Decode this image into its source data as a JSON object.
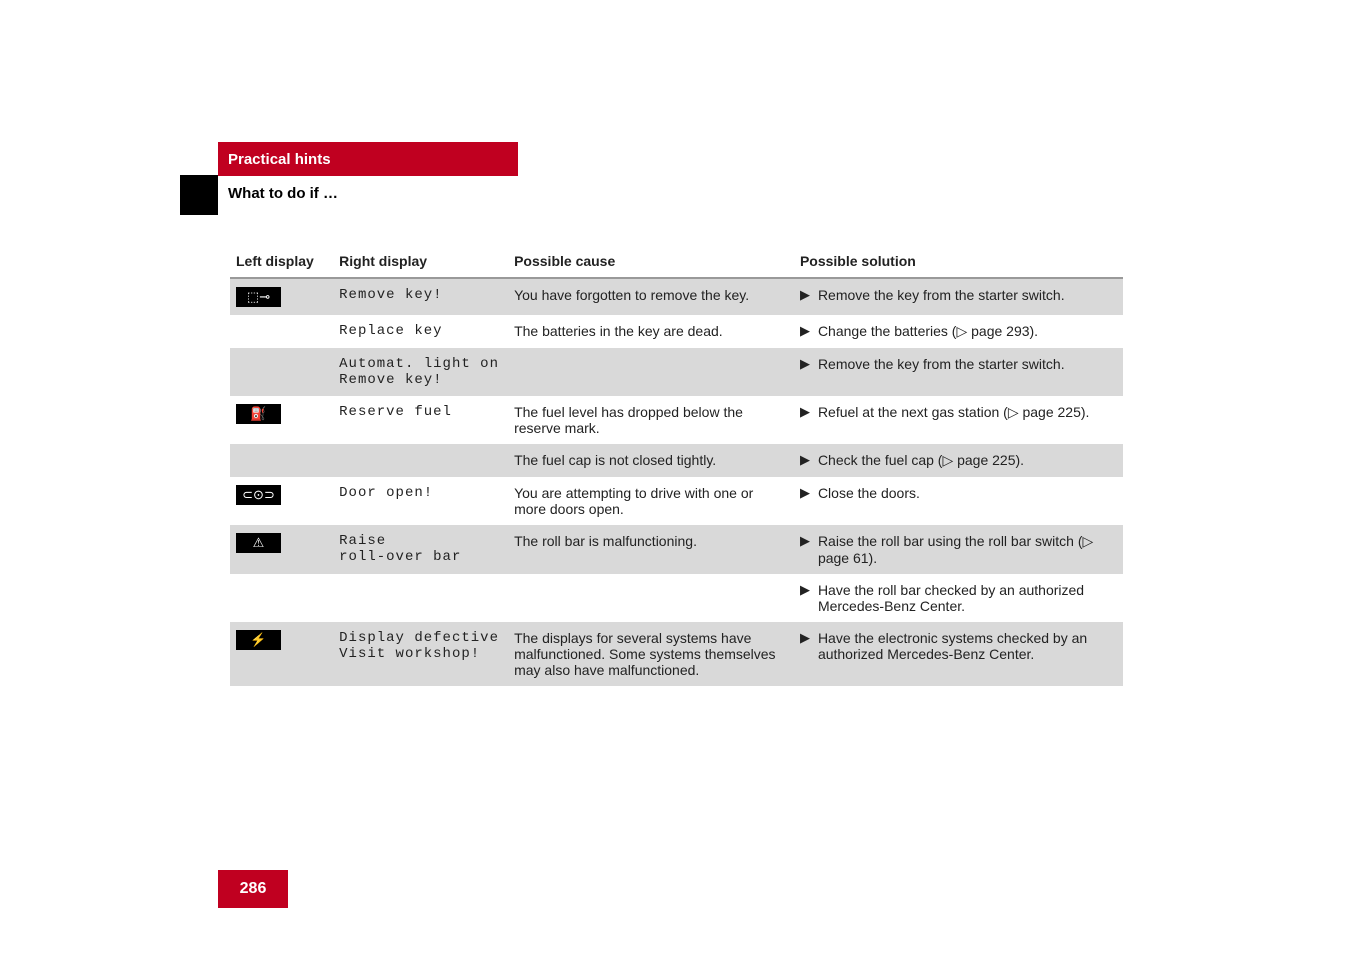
{
  "banner": "Practical hints",
  "section": "What to do if …",
  "page_number": "286",
  "headers": {
    "left": "Left display",
    "right": "Right display",
    "cause": "Possible cause",
    "solution": "Possible solution"
  },
  "icons": {
    "key": "⬚⊸",
    "fuel": "⛽",
    "door": "⊂⊙⊃",
    "rollbar": "⚠",
    "display": "⚡"
  },
  "rows": {
    "r1": {
      "right": "Remove key!",
      "cause": "You have forgotten to remove the key.",
      "sol": "Remove the key from the starter switch."
    },
    "r2": {
      "right": "Replace key",
      "cause": "The batteries in the key are dead.",
      "sol": "Change the batteries (▷ page 293)."
    },
    "r3": {
      "right_a": "Automat. light on",
      "right_b": "Remove key!",
      "sol": "Remove the key from the starter switch."
    },
    "r4": {
      "right": "Reserve fuel",
      "cause": "The fuel level has dropped below the reserve mark.",
      "sol": "Refuel at the next gas station (▷ page 225)."
    },
    "r5": {
      "cause": "The fuel cap is not closed tightly.",
      "sol": "Check the fuel cap (▷ page 225)."
    },
    "r6": {
      "right": "Door open!",
      "cause": "You are attempting to drive with one or more doors open.",
      "sol": "Close the doors."
    },
    "r7": {
      "right_a": "Raise",
      "right_b": "roll-over bar",
      "cause": "The roll bar is malfunctioning.",
      "sol": "Raise the roll bar using the roll bar switch (▷ page 61)."
    },
    "r8": {
      "sol": "Have the roll bar checked by an authorized Mercedes-Benz Center."
    },
    "r9": {
      "right_a": "Display defective",
      "right_b": "Visit workshop!",
      "cause": "The displays for several systems have malfunctioned. Some systems themselves may also have malfunctioned.",
      "sol": "Have the electronic systems checked by an authorized Mercedes-Benz Center."
    }
  },
  "bullet_glyph": "▶",
  "colors": {
    "red": "#c00020",
    "black": "#000000",
    "grey_row": "#d9d9d9"
  }
}
